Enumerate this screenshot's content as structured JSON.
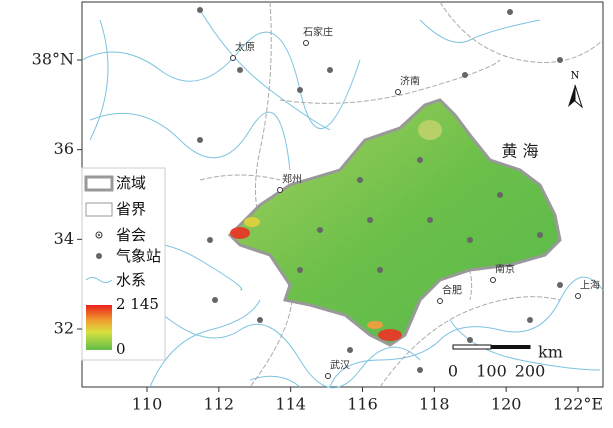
{
  "map": {
    "lat_ticks": [
      {
        "value": 38,
        "label": "38°N"
      },
      36,
      34,
      32
    ],
    "lon_ticks": [
      110,
      112,
      114,
      116,
      118,
      120,
      {
        "value": 122,
        "label": "122°E"
      }
    ],
    "cities": [
      "石家庄",
      "太原",
      "济南",
      "郑州",
      "南京",
      "合肥",
      "上海",
      "武汉"
    ],
    "sea": "黄 海",
    "north": "N",
    "scale_bar": {
      "ticks": [
        0,
        100,
        200
      ],
      "unit": "km"
    },
    "legend": {
      "items": [
        "流域",
        "省界",
        "省会",
        "气象站",
        "水系"
      ],
      "colorbar": {
        "max": {
          "value": 2145,
          "label": "2 145"
        },
        "min": 0
      }
    }
  }
}
